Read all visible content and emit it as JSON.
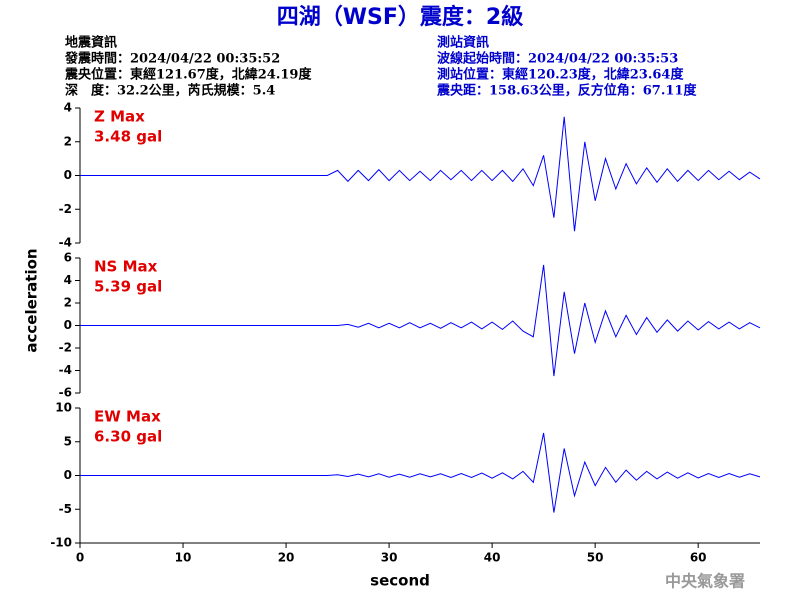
{
  "header": {
    "title": "四湖（WSF）震度：2級",
    "left": [
      "地震資訊",
      "發震時間：2024/04/22 00:35:52",
      "震央位置：東經121.67度，北緯24.19度",
      "深　度：32.2公里，芮氏規模：5.4"
    ],
    "right": [
      "測站資訊",
      "波線起始時間：2024/04/22 00:35:53",
      "測站位置：東經120.23度，北緯23.64度",
      "震央距：158.63公里，反方位角：67.11度"
    ]
  },
  "footer": "中央氣象署",
  "chart_data": [
    {
      "type": "line",
      "title": "Z Max",
      "annotation": "3.48 gal",
      "color": "#0000ff",
      "xlim": [
        0,
        66
      ],
      "ylim": [
        -4,
        4
      ],
      "yticks": [
        -4,
        -2,
        0,
        2,
        4
      ],
      "x": [
        0,
        24,
        25,
        26,
        27,
        28,
        29,
        30,
        31,
        32,
        33,
        34,
        35,
        36,
        37,
        38,
        39,
        40,
        41,
        42,
        43,
        44,
        45,
        46,
        47,
        48,
        49,
        50,
        51,
        52,
        53,
        54,
        55,
        56,
        57,
        58,
        59,
        60,
        61,
        62,
        63,
        64,
        65,
        66
      ],
      "values": [
        0,
        0,
        0.3,
        -0.35,
        0.3,
        -0.3,
        0.35,
        -0.3,
        0.3,
        -0.3,
        0.25,
        -0.3,
        0.3,
        -0.25,
        0.3,
        -0.3,
        0.3,
        -0.3,
        0.3,
        -0.35,
        0.4,
        -0.6,
        1.2,
        -2.5,
        3.48,
        -3.3,
        2.0,
        -1.5,
        1.0,
        -0.8,
        0.7,
        -0.5,
        0.45,
        -0.4,
        0.4,
        -0.35,
        0.3,
        -0.3,
        0.3,
        -0.25,
        0.25,
        -0.25,
        0.2,
        -0.2
      ]
    },
    {
      "type": "line",
      "title": "NS Max",
      "annotation": "5.39 gal",
      "color": "#0000ff",
      "xlim": [
        0,
        66
      ],
      "ylim": [
        -6,
        6
      ],
      "yticks": [
        -6,
        -4,
        -2,
        0,
        2,
        4,
        6
      ],
      "y_label": "acceleration",
      "x": [
        0,
        25,
        26,
        27,
        28,
        29,
        30,
        31,
        32,
        33,
        34,
        35,
        36,
        37,
        38,
        39,
        40,
        41,
        42,
        43,
        44,
        45,
        46,
        47,
        48,
        49,
        50,
        51,
        52,
        53,
        54,
        55,
        56,
        57,
        58,
        59,
        60,
        61,
        62,
        63,
        64,
        65,
        66
      ],
      "values": [
        0,
        0,
        0.1,
        -0.15,
        0.2,
        -0.2,
        0.2,
        -0.2,
        0.25,
        -0.2,
        0.2,
        -0.25,
        0.25,
        -0.2,
        0.3,
        -0.3,
        0.3,
        -0.35,
        0.4,
        -0.5,
        -1.0,
        5.39,
        -4.5,
        3.0,
        -2.5,
        2.0,
        -1.5,
        1.3,
        -1.0,
        0.9,
        -0.8,
        0.7,
        -0.6,
        0.5,
        -0.5,
        0.4,
        -0.4,
        0.35,
        -0.3,
        0.3,
        -0.3,
        0.25,
        -0.2
      ]
    },
    {
      "type": "line",
      "title": "EW Max",
      "annotation": "6.30 gal",
      "color": "#0000ff",
      "xlim": [
        0,
        66
      ],
      "ylim": [
        -10,
        10
      ],
      "yticks": [
        -10,
        -5,
        0,
        5,
        10
      ],
      "xticks": [
        0,
        10,
        20,
        30,
        40,
        50,
        60
      ],
      "x_label": "second",
      "x": [
        0,
        24,
        25,
        26,
        27,
        28,
        29,
        30,
        31,
        32,
        33,
        34,
        35,
        36,
        37,
        38,
        39,
        40,
        41,
        42,
        43,
        44,
        45,
        46,
        47,
        48,
        49,
        50,
        51,
        52,
        53,
        54,
        55,
        56,
        57,
        58,
        59,
        60,
        61,
        62,
        63,
        64,
        65,
        66
      ],
      "values": [
        0,
        0,
        0.1,
        -0.15,
        0.2,
        -0.2,
        0.25,
        -0.25,
        0.2,
        -0.25,
        0.25,
        -0.2,
        0.25,
        -0.3,
        0.3,
        -0.3,
        0.35,
        -0.4,
        0.4,
        -0.5,
        0.6,
        -1.0,
        6.3,
        -5.5,
        4.0,
        -3.0,
        2.0,
        -1.5,
        1.2,
        -1.0,
        0.8,
        -0.7,
        0.6,
        -0.5,
        0.5,
        -0.4,
        0.4,
        -0.35,
        0.3,
        -0.3,
        0.3,
        -0.25,
        0.25,
        -0.2
      ]
    }
  ]
}
